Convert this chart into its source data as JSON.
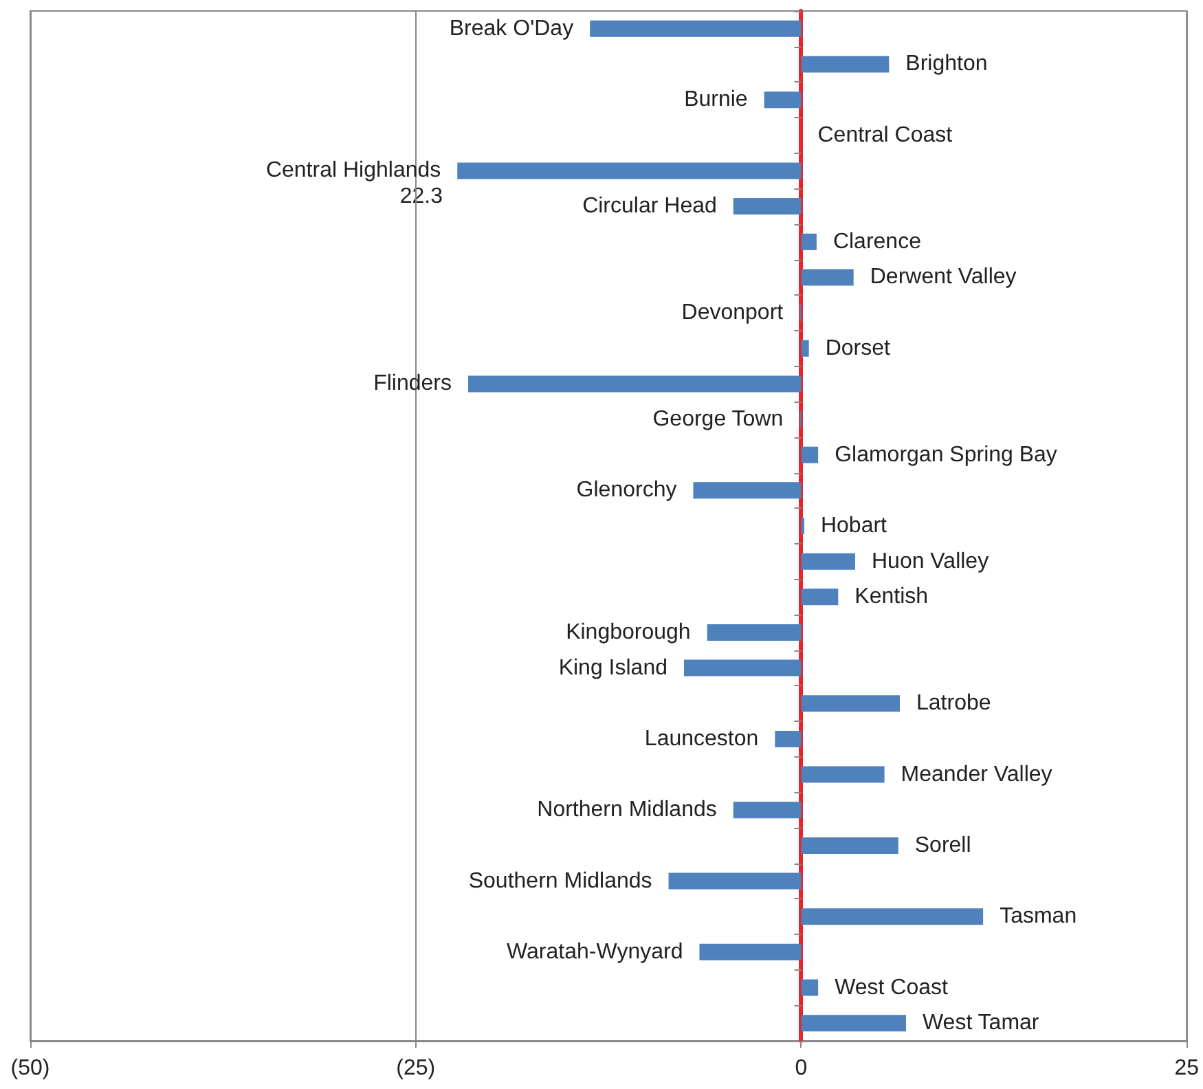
{
  "chart_data": {
    "type": "bar",
    "orientation": "horizontal",
    "categories": [
      "Break O'Day",
      "Brighton",
      "Burnie",
      "Central Coast",
      "Central Highlands",
      "Circular Head",
      "Clarence",
      "Derwent Valley",
      "Devonport",
      "Dorset",
      "Flinders",
      "George Town",
      "Glamorgan Spring Bay",
      "Glenorchy",
      "Hobart",
      "Huon Valley",
      "Kentish",
      "Kingborough",
      "King Island",
      "Latrobe",
      "Launceston",
      "Meander Valley",
      "Northern Midlands",
      "Sorell",
      "Southern Midlands",
      "Tasman",
      "Waratah-Wynyard",
      "West Coast",
      "West Tamar"
    ],
    "values": [
      -13.7,
      5.7,
      -2.4,
      0,
      -22.3,
      -4.4,
      1.0,
      3.4,
      -0.1,
      0.5,
      -21.6,
      -0.1,
      1.1,
      -7.0,
      0.2,
      3.5,
      2.4,
      -6.1,
      -7.6,
      6.4,
      -1.7,
      5.4,
      -4.4,
      6.3,
      -8.6,
      11.8,
      -6.6,
      1.1,
      6.8
    ],
    "annotations": [
      "22.3"
    ],
    "color": "#4f81bd",
    "xlim": [
      -50,
      25
    ],
    "xticks": [
      {
        "value": -50,
        "label": "(50)"
      },
      {
        "value": -25,
        "label": "(25)"
      },
      0,
      25
    ],
    "grid": "x",
    "tick_labels": "x"
  }
}
